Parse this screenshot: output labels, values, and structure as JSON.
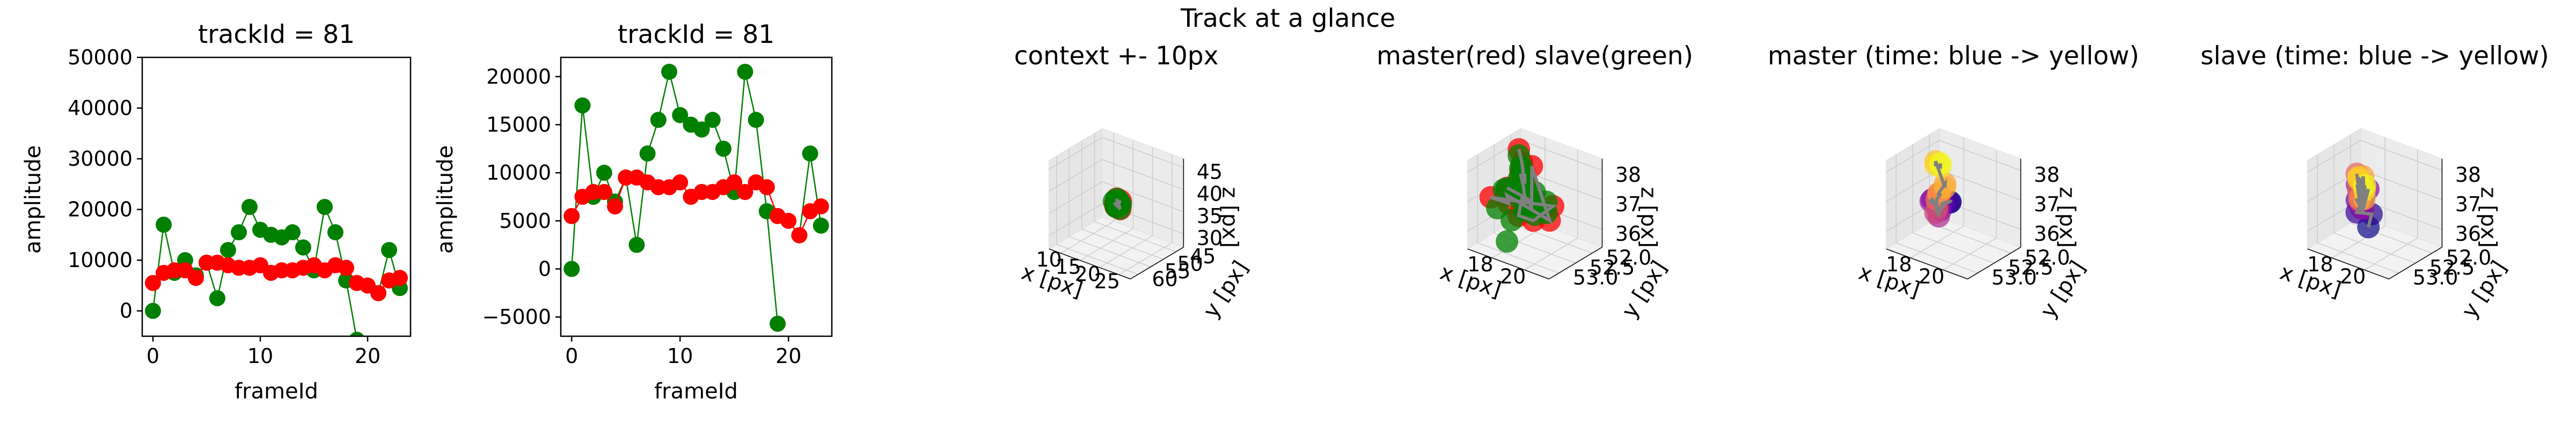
{
  "suptitle": "Track at a glance",
  "colors": {
    "master": "#ff0000",
    "slave": "#008000",
    "track_line": "#808080",
    "pane": "#f2f2f2",
    "grid": "#cccccc"
  },
  "panels": [
    {
      "title": "trackId = 81",
      "xlabel": "frameId",
      "ylabel": "amplitude"
    },
    {
      "title": "trackId = 81",
      "xlabel": "frameId",
      "ylabel": "amplitude"
    },
    {
      "title": "context +- 10px",
      "xlabel": "x [px]",
      "ylabel": "y [px]",
      "zlabel": "z [px]"
    },
    {
      "title": "master(red) slave(green)",
      "xlabel": "x [px]",
      "ylabel": "y [px]",
      "zlabel": "z [px]"
    },
    {
      "title": "master (time: blue -> yellow)",
      "xlabel": "x [px]",
      "ylabel": "y [px]",
      "zlabel": "z [px]"
    },
    {
      "title": "slave (time: blue -> yellow)",
      "xlabel": "x [px]",
      "ylabel": "y [px]",
      "zlabel": "z [px]"
    }
  ],
  "chart_data": [
    {
      "type": "line",
      "title": "trackId = 81",
      "xlabel": "frameId",
      "ylabel": "amplitude",
      "xlim": [
        -1,
        24
      ],
      "ylim": [
        -5000,
        50000
      ],
      "xticks": [
        0,
        10,
        20
      ],
      "yticks": [
        0,
        10000,
        20000,
        30000,
        40000,
        50000
      ],
      "xtick_labels": [
        "0",
        "10",
        "20"
      ],
      "ytick_labels": [
        "0",
        "10000",
        "20000",
        "30000",
        "40000",
        "50000"
      ],
      "series": [
        {
          "name": "slave",
          "color": "#008000",
          "x": [
            0,
            1,
            2,
            3,
            4,
            5,
            6,
            7,
            8,
            9,
            10,
            11,
            12,
            13,
            14,
            15,
            16,
            17,
            18,
            19,
            20,
            21,
            22,
            23
          ],
          "y": [
            0,
            17000,
            7500,
            10000,
            7000,
            9500,
            2500,
            12000,
            15500,
            20500,
            16000,
            15000,
            14500,
            15500,
            12500,
            8000,
            20500,
            15500,
            6000,
            -5700,
            null,
            3500,
            12000,
            4500
          ]
        },
        {
          "name": "master",
          "color": "#ff0000",
          "x": [
            0,
            1,
            2,
            3,
            4,
            5,
            6,
            7,
            8,
            9,
            10,
            11,
            12,
            13,
            14,
            15,
            16,
            17,
            18,
            19,
            20,
            21,
            22,
            23
          ],
          "y": [
            5500,
            7500,
            8000,
            8000,
            6500,
            9500,
            9500,
            9000,
            8500,
            8500,
            9000,
            7500,
            8000,
            8000,
            8500,
            9000,
            8000,
            9000,
            8500,
            5500,
            5000,
            3500,
            6000,
            6500
          ]
        }
      ]
    },
    {
      "type": "line",
      "title": "trackId = 81",
      "xlabel": "frameId",
      "ylabel": "amplitude",
      "xlim": [
        -1,
        24
      ],
      "ylim": [
        -7000,
        22000
      ],
      "xticks": [
        0,
        10,
        20
      ],
      "yticks": [
        -5000,
        0,
        5000,
        10000,
        15000,
        20000
      ],
      "xtick_labels": [
        "0",
        "10",
        "20"
      ],
      "ytick_labels": [
        "−5000",
        "0",
        "5000",
        "10000",
        "15000",
        "20000"
      ],
      "series": [
        {
          "name": "slave",
          "color": "#008000",
          "x": [
            0,
            1,
            2,
            3,
            4,
            5,
            6,
            7,
            8,
            9,
            10,
            11,
            12,
            13,
            14,
            15,
            16,
            17,
            18,
            19,
            20,
            21,
            22,
            23
          ],
          "y": [
            0,
            17000,
            7500,
            10000,
            7000,
            9500,
            2500,
            12000,
            15500,
            20500,
            16000,
            15000,
            14500,
            15500,
            12500,
            8000,
            20500,
            15500,
            6000,
            -5700,
            null,
            3500,
            12000,
            4500
          ]
        },
        {
          "name": "master",
          "color": "#ff0000",
          "x": [
            0,
            1,
            2,
            3,
            4,
            5,
            6,
            7,
            8,
            9,
            10,
            11,
            12,
            13,
            14,
            15,
            16,
            17,
            18,
            19,
            20,
            21,
            22,
            23
          ],
          "y": [
            5500,
            7500,
            8000,
            8000,
            6500,
            9500,
            9500,
            9000,
            8500,
            8500,
            9000,
            7500,
            8000,
            8000,
            8500,
            9000,
            8000,
            9000,
            8500,
            5500,
            5000,
            3500,
            6000,
            6500
          ]
        }
      ]
    },
    {
      "type": "scatter3d",
      "title": "context +- 10px",
      "xlabel": "x [px]",
      "ylabel": "y [px]",
      "zlabel": "z [px]",
      "xlim": [
        7,
        28
      ],
      "ylim": [
        42,
        63
      ],
      "zlim": [
        27,
        47
      ],
      "xticks": [
        10,
        15,
        20,
        25
      ],
      "yticks": [
        45,
        50,
        55,
        60
      ],
      "zticks": [
        30,
        35,
        40,
        45
      ],
      "xtick_labels": [
        "10",
        "15",
        "20",
        "25"
      ],
      "ytick_labels": [
        "45",
        "50",
        "55",
        "60"
      ],
      "ztick_labels": [
        "30",
        "35",
        "40",
        "45"
      ],
      "series": [
        {
          "name": "master",
          "color": "#ff0000",
          "x": [
            17.1,
            17.5,
            17.9,
            18.3,
            17.4,
            18.6,
            18.0,
            17.7,
            18.4,
            17.3,
            18.1,
            17.8
          ],
          "y": [
            52.0,
            52.4,
            52.8,
            53.1,
            52.2,
            52.6,
            52.9,
            53.2,
            52.1,
            52.5,
            52.7,
            53.0
          ],
          "z": [
            36.0,
            36.5,
            37.0,
            37.5,
            38.0,
            36.2,
            36.8,
            37.3,
            37.8,
            36.4,
            37.1,
            37.6
          ]
        },
        {
          "name": "slave",
          "color": "#008000",
          "x": [
            17.2,
            17.6,
            18.0,
            18.4,
            17.5,
            18.5,
            17.9,
            17.4,
            18.2,
            17.7,
            18.6,
            17.3
          ],
          "y": [
            52.1,
            52.5,
            52.9,
            53.2,
            52.3,
            52.7,
            53.0,
            52.2,
            52.6,
            52.8,
            52.4,
            53.1
          ],
          "z": [
            36.1,
            36.6,
            37.1,
            37.6,
            38.0,
            36.3,
            36.9,
            37.4,
            37.9,
            36.5,
            37.2,
            37.7
          ]
        }
      ]
    },
    {
      "type": "scatter3d",
      "title": "master(red) slave(green)",
      "xlabel": "x [px]",
      "ylabel": "y [px]",
      "zlabel": "z [px]",
      "xlim": [
        16.5,
        21.5
      ],
      "ylim": [
        51.7,
        53.3
      ],
      "zlim": [
        35.4,
        38.4
      ],
      "xticks": [
        18,
        20
      ],
      "yticks": [
        52.0,
        52.5,
        53.0
      ],
      "zticks": [
        36,
        37,
        38
      ],
      "xtick_labels": [
        "18",
        "20"
      ],
      "ytick_labels": [
        "52.0",
        "52.5",
        "53.0"
      ],
      "ztick_labels": [
        "36",
        "37",
        "38"
      ],
      "series": [
        {
          "name": "master",
          "color": "#ff0000",
          "x": [
            17.0,
            17.6,
            18.1,
            18.6,
            19.0,
            19.4,
            17.3,
            17.9,
            18.4,
            18.9,
            19.3,
            19.7,
            17.6,
            18.2,
            18.7,
            19.1,
            17.1,
            17.8,
            18.5,
            19.5,
            18.0,
            18.8,
            19.2,
            17.5
          ],
          "y": [
            52.0,
            52.2,
            52.4,
            52.6,
            52.8,
            53.0,
            52.1,
            52.3,
            52.5,
            52.7,
            52.9,
            53.1,
            52.2,
            52.6,
            52.4,
            52.0,
            52.9,
            52.7,
            53.1,
            52.3,
            52.1,
            52.5,
            52.8,
            52.6
          ],
          "z": [
            38.0,
            37.8,
            37.6,
            37.9,
            38.1,
            38.0,
            37.3,
            37.1,
            36.9,
            37.2,
            37.4,
            37.6,
            36.6,
            36.4,
            36.2,
            36.5,
            37.0,
            36.8,
            37.5,
            36.3,
            37.7,
            36.7,
            37.3,
            37.2
          ]
        },
        {
          "name": "slave",
          "color": "#008000",
          "x": [
            17.2,
            17.7,
            18.2,
            18.7,
            19.1,
            19.6,
            17.4,
            18.0,
            18.5,
            19.0,
            19.4,
            17.8,
            18.3,
            18.8,
            17.1,
            18.9,
            18.1,
            17.6,
            19.2,
            18.4,
            17.9,
            19.5,
            18.6,
            17.3
          ],
          "y": [
            52.1,
            52.3,
            52.5,
            52.7,
            52.9,
            53.1,
            52.2,
            52.4,
            52.6,
            52.8,
            53.0,
            52.0,
            52.3,
            52.5,
            52.7,
            52.1,
            52.9,
            52.4,
            52.6,
            52.2,
            52.8,
            52.4,
            53.0,
            52.6
          ],
          "z": [
            37.9,
            37.7,
            38.0,
            37.8,
            38.1,
            37.9,
            37.2,
            37.0,
            37.3,
            36.9,
            37.1,
            36.6,
            36.4,
            36.7,
            36.5,
            36.3,
            37.5,
            36.8,
            37.4,
            36.2,
            35.6,
            37.0,
            36.6,
            37.1
          ]
        }
      ]
    },
    {
      "type": "scatter3d",
      "title": "master (time: blue -> yellow)",
      "xlabel": "x [px]",
      "ylabel": "y [px]",
      "zlabel": "z [px]",
      "xlim": [
        16.5,
        21.5
      ],
      "ylim": [
        51.7,
        53.3
      ],
      "zlim": [
        35.4,
        38.4
      ],
      "xticks": [
        18,
        20
      ],
      "yticks": [
        52.0,
        52.5,
        53.0
      ],
      "zticks": [
        36,
        37,
        38
      ],
      "xtick_labels": [
        "18",
        "20"
      ],
      "ytick_labels": [
        "52.0",
        "52.5",
        "53.0"
      ],
      "ztick_labels": [
        "36",
        "37",
        "38"
      ],
      "colormap": "plasma",
      "series": [
        {
          "name": "master",
          "time_colored": true,
          "x": [
            18.6,
            18.2,
            18.9,
            17.8,
            18.4,
            17.6,
            18.1,
            17.4,
            18.7,
            18.3,
            19.0,
            18.5,
            19.2,
            18.8,
            19.4,
            19.6,
            19.3,
            18.9,
            19.1,
            19.7,
            17.5,
            17.9,
            18.4,
            18.0
          ],
          "y": [
            52.4,
            52.2,
            52.6,
            52.3,
            52.5,
            52.2,
            52.7,
            52.4,
            52.8,
            52.6,
            53.0,
            52.8,
            53.1,
            52.9,
            53.2,
            53.2,
            53.1,
            52.9,
            52.8,
            53.1,
            52.3,
            52.5,
            52.6,
            52.4
          ],
          "z": [
            36.8,
            36.6,
            37.0,
            36.5,
            36.8,
            36.2,
            37.0,
            36.6,
            36.9,
            36.4,
            37.1,
            36.7,
            37.2,
            37.3,
            37.6,
            37.8,
            37.7,
            37.5,
            37.8,
            38.0,
            37.9,
            38.0,
            38.1,
            38.0
          ]
        }
      ]
    },
    {
      "type": "scatter3d",
      "title": "slave (time: blue -> yellow)",
      "xlabel": "x [px]",
      "ylabel": "y [px]",
      "zlabel": "z [px]",
      "xlim": [
        16.5,
        21.5
      ],
      "ylim": [
        51.7,
        53.3
      ],
      "zlim": [
        35.4,
        38.4
      ],
      "xticks": [
        18,
        20
      ],
      "yticks": [
        52.0,
        52.5,
        53.0
      ],
      "zticks": [
        36,
        37,
        38
      ],
      "xtick_labels": [
        "18",
        "20"
      ],
      "ytick_labels": [
        "52.0",
        "52.5",
        "53.0"
      ],
      "ztick_labels": [
        "36",
        "37",
        "38"
      ],
      "colormap": "plasma",
      "series": [
        {
          "name": "slave",
          "time_colored": true,
          "x": [
            18.0,
            18.6,
            18.3,
            17.5,
            17.9,
            18.8,
            18.2,
            18.5,
            17.3,
            18.9,
            18.4,
            19.1,
            17.8,
            18.6,
            18.1,
            19.3,
            19.5,
            19.0,
            18.7,
            19.6,
            17.6,
            18.2,
            19.8,
            18.4
          ],
          "y": [
            52.2,
            52.4,
            52.7,
            52.1,
            52.5,
            52.8,
            52.3,
            52.6,
            52.2,
            52.9,
            52.5,
            53.0,
            52.4,
            52.8,
            52.6,
            53.1,
            53.2,
            52.9,
            52.7,
            53.1,
            52.3,
            52.6,
            53.2,
            52.5
          ],
          "z": [
            35.7,
            36.4,
            36.6,
            36.5,
            36.8,
            36.9,
            37.1,
            36.7,
            37.0,
            37.2,
            37.3,
            37.4,
            37.0,
            37.6,
            37.8,
            37.5,
            37.7,
            37.9,
            37.9,
            37.6,
            37.3,
            37.7,
            38.0,
            37.4
          ]
        }
      ]
    }
  ]
}
